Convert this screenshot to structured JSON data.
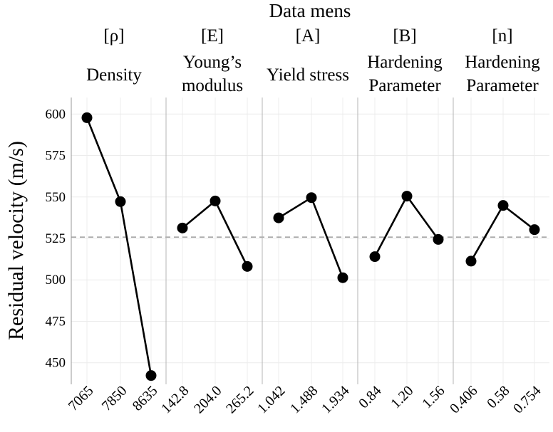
{
  "chart_data": {
    "type": "line",
    "title": "Data mens",
    "ylabel": "Residual velocity (m/s)",
    "xlabel": "",
    "ylim": [
      437,
      610
    ],
    "yticks": [
      450,
      475,
      500,
      525,
      550,
      575,
      600
    ],
    "ytick_labels": [
      "450",
      "475",
      "500",
      "525",
      "550",
      "575",
      "600"
    ],
    "mean_line": 525.8,
    "grid": true,
    "panels": [
      {
        "symbol": "[ρ]",
        "name_lines": [
          "Density"
        ],
        "categories": [
          "7065",
          "7850",
          "8635"
        ],
        "values": [
          597.8,
          547.2,
          442.3
        ]
      },
      {
        "symbol": "[E]",
        "name_lines": [
          "Young’s",
          "modulus"
        ],
        "categories": [
          "142.8",
          "204.0",
          "265.2"
        ],
        "values": [
          531.3,
          547.6,
          508.1
        ]
      },
      {
        "symbol": "[A]",
        "name_lines": [
          "Yield stress"
        ],
        "categories": [
          "1.042",
          "1.488",
          "1.934"
        ],
        "values": [
          537.4,
          549.6,
          501.3
        ]
      },
      {
        "symbol": "[B]",
        "name_lines": [
          "Hardening",
          "Parameter"
        ],
        "categories": [
          "0.84",
          "1.20",
          "1.56"
        ],
        "values": [
          514.0,
          550.5,
          524.4
        ]
      },
      {
        "symbol": "[n]",
        "name_lines": [
          "Hardening",
          "Parameter"
        ],
        "categories": [
          "0.406",
          "0.58",
          "0.754"
        ],
        "values": [
          511.3,
          544.9,
          530.3
        ]
      }
    ]
  }
}
